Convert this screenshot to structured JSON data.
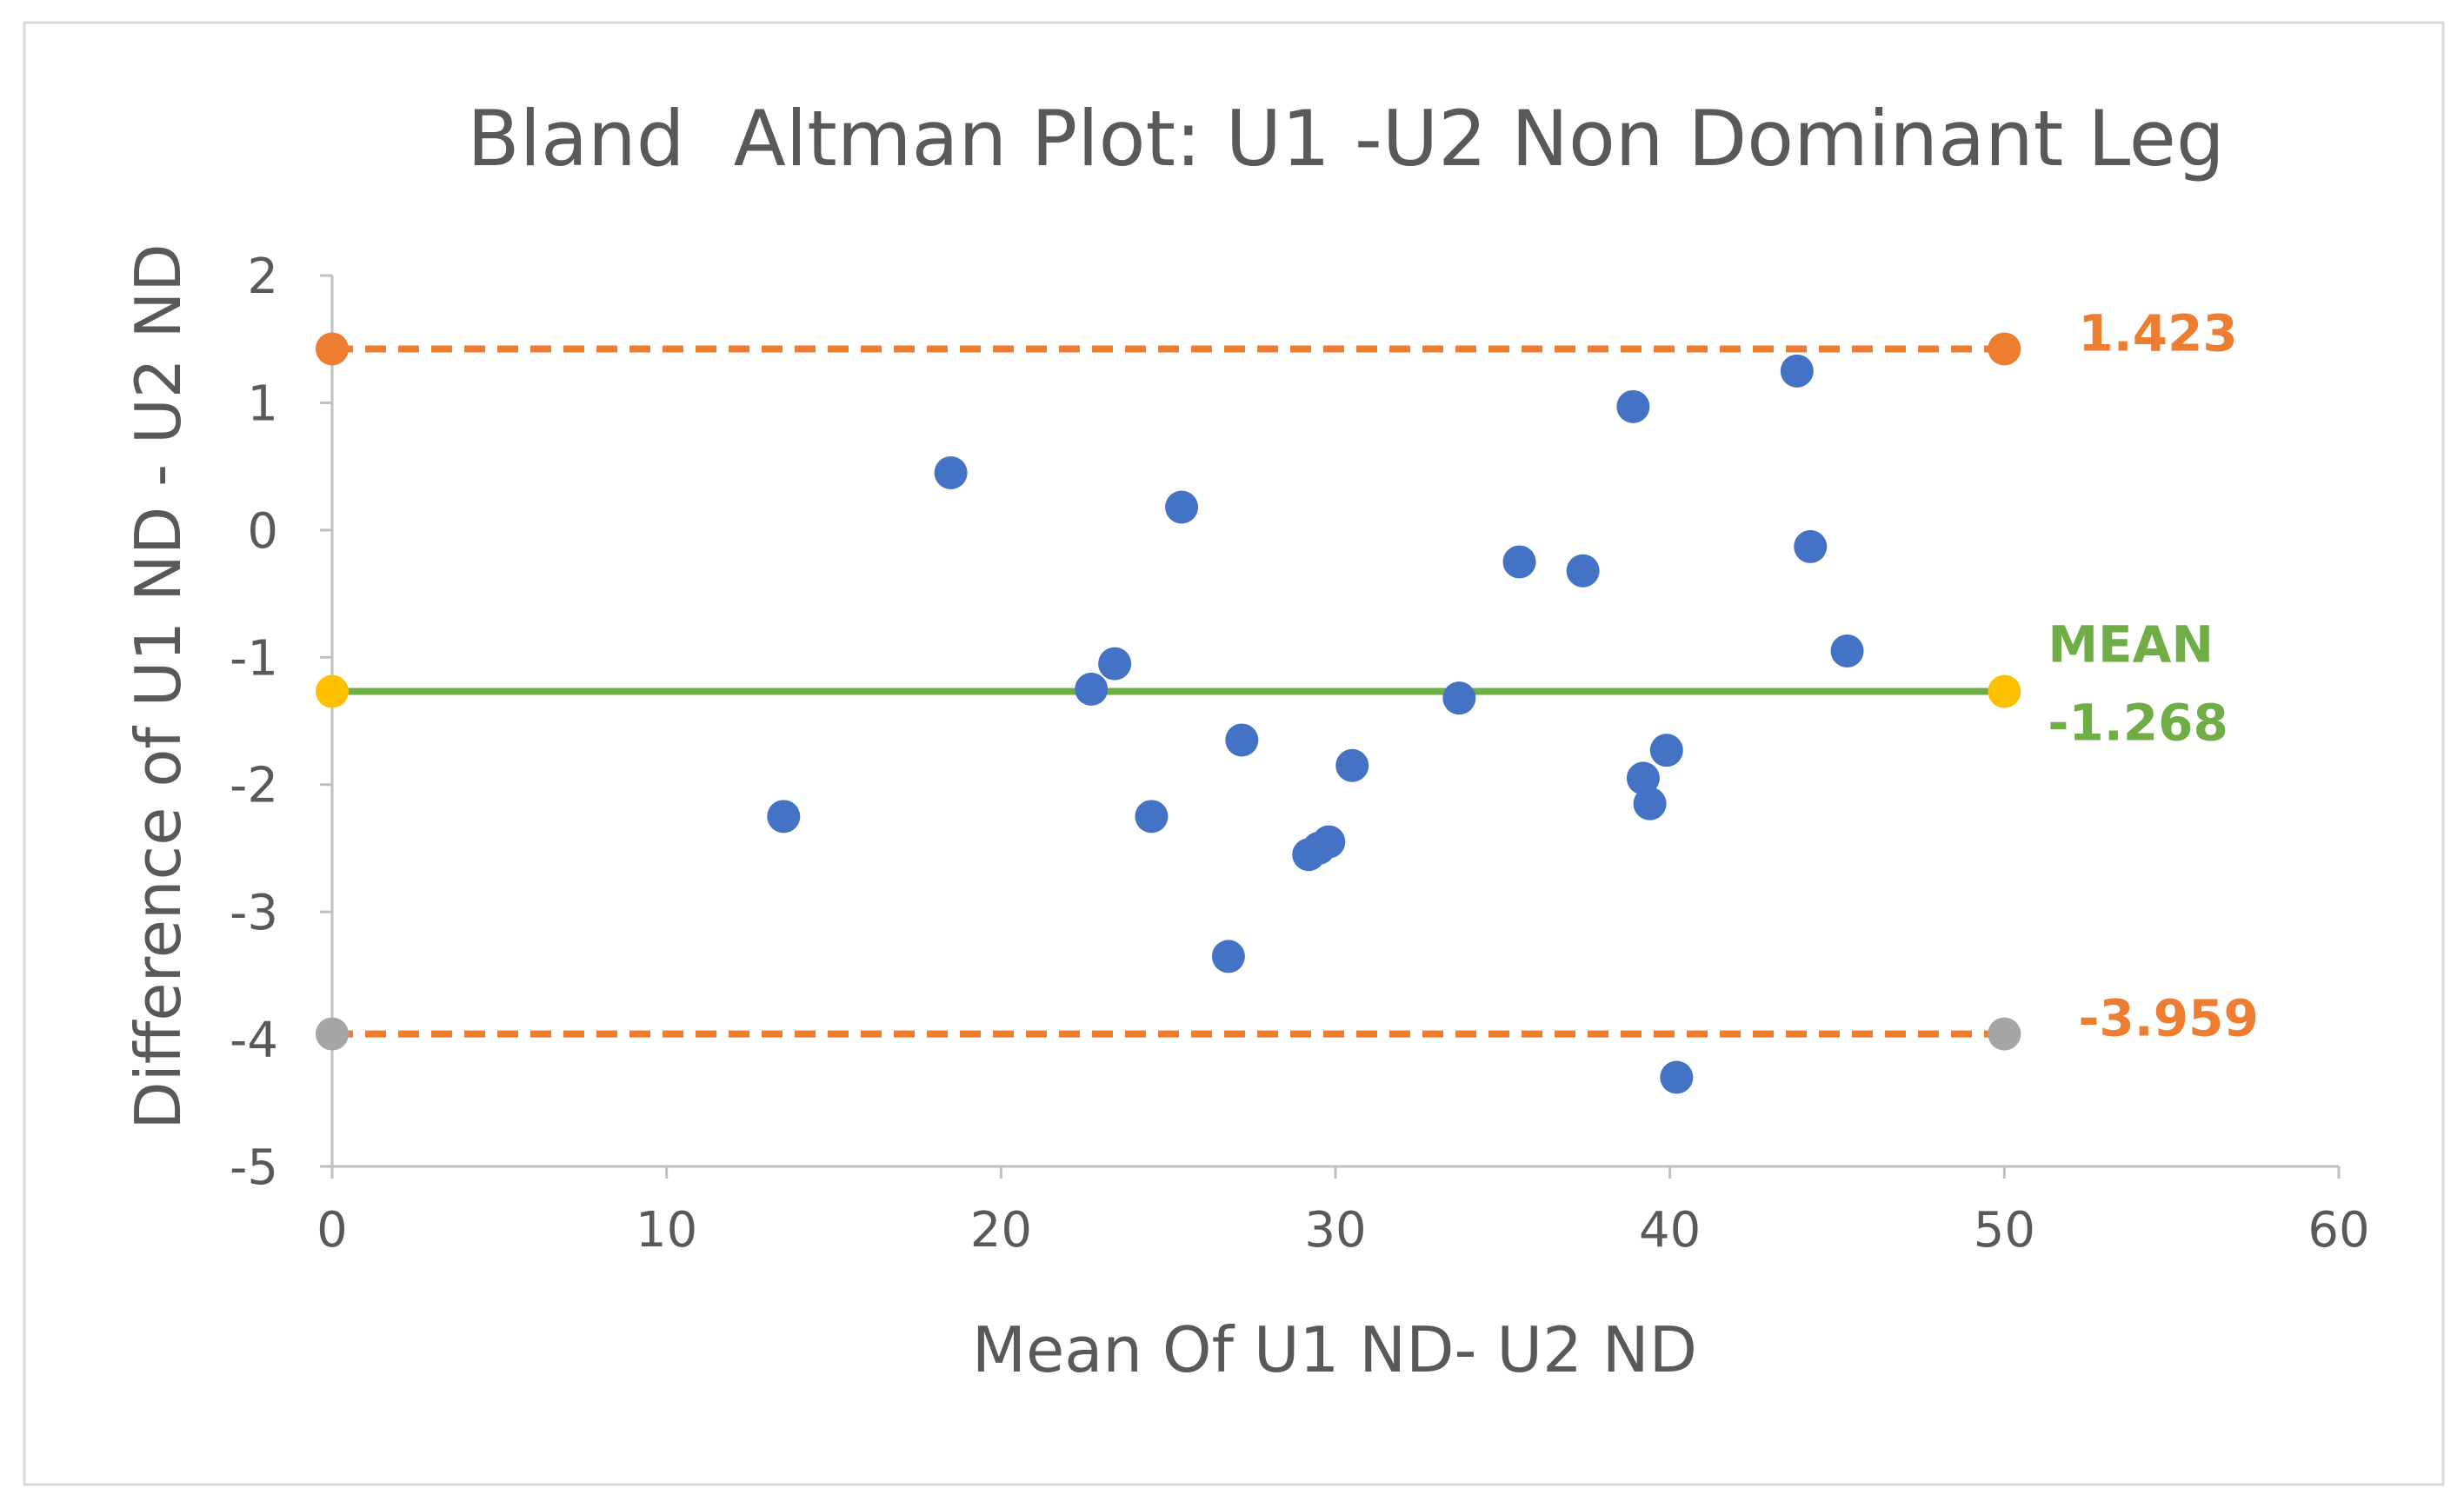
{
  "chart_data": {
    "type": "scatter",
    "title": "Bland  Altman Plot: U1 -U2 Non Dominant Leg",
    "xlabel": "Mean Of U1 ND- U2 ND",
    "ylabel": "Difference of U1 ND - U2 ND",
    "xlim": [
      0,
      60
    ],
    "ylim": [
      -5,
      2
    ],
    "x_ticks": [
      0,
      10,
      20,
      30,
      40,
      50,
      60
    ],
    "y_ticks": [
      2,
      1,
      0,
      -1,
      -2,
      -3,
      -4,
      -5
    ],
    "grid": false,
    "points": [
      {
        "x": 13.5,
        "y": -2.25
      },
      {
        "x": 18.5,
        "y": 0.45
      },
      {
        "x": 22.7,
        "y": -1.25
      },
      {
        "x": 23.4,
        "y": -1.05
      },
      {
        "x": 24.5,
        "y": -2.25
      },
      {
        "x": 25.4,
        "y": 0.18
      },
      {
        "x": 26.8,
        "y": -3.35
      },
      {
        "x": 27.2,
        "y": -1.65
      },
      {
        "x": 29.2,
        "y": -2.55
      },
      {
        "x": 29.5,
        "y": -2.5
      },
      {
        "x": 29.8,
        "y": -2.45
      },
      {
        "x": 30.5,
        "y": -1.85
      },
      {
        "x": 33.7,
        "y": -1.32
      },
      {
        "x": 35.5,
        "y": -0.25
      },
      {
        "x": 37.4,
        "y": -0.32
      },
      {
        "x": 38.9,
        "y": 0.97
      },
      {
        "x": 39.2,
        "y": -1.95
      },
      {
        "x": 39.4,
        "y": -2.15
      },
      {
        "x": 39.9,
        "y": -1.73
      },
      {
        "x": 40.2,
        "y": -4.3
      },
      {
        "x": 43.8,
        "y": 1.25
      },
      {
        "x": 44.2,
        "y": -0.13
      },
      {
        "x": 45.3,
        "y": -0.95
      }
    ],
    "reference_lines": [
      {
        "name": "upper",
        "y": 1.423,
        "x_start": 0,
        "x_end": 50,
        "style": "dashed",
        "line_color": "#ED7D31",
        "marker_color": "#ED7D31",
        "label": "1.423",
        "label_color": "#ED7D31"
      },
      {
        "name": "mean",
        "y": -1.268,
        "x_start": 0,
        "x_end": 50,
        "style": "solid",
        "line_color": "#70AD47",
        "marker_color": "#FFC000",
        "label_top": "MEAN",
        "label": "-1.268",
        "label_color": "#70AD47"
      },
      {
        "name": "lower",
        "y": -3.959,
        "x_start": 0,
        "x_end": 50,
        "style": "dashed",
        "line_color": "#ED7D31",
        "marker_color": "#A5A5A5",
        "label": "-3.959",
        "label_color": "#ED7D31"
      }
    ],
    "colors": {
      "points": "#4472C4",
      "axis": "#BFBFBF",
      "text": "#595959",
      "frame": "#D9D9D9"
    }
  }
}
